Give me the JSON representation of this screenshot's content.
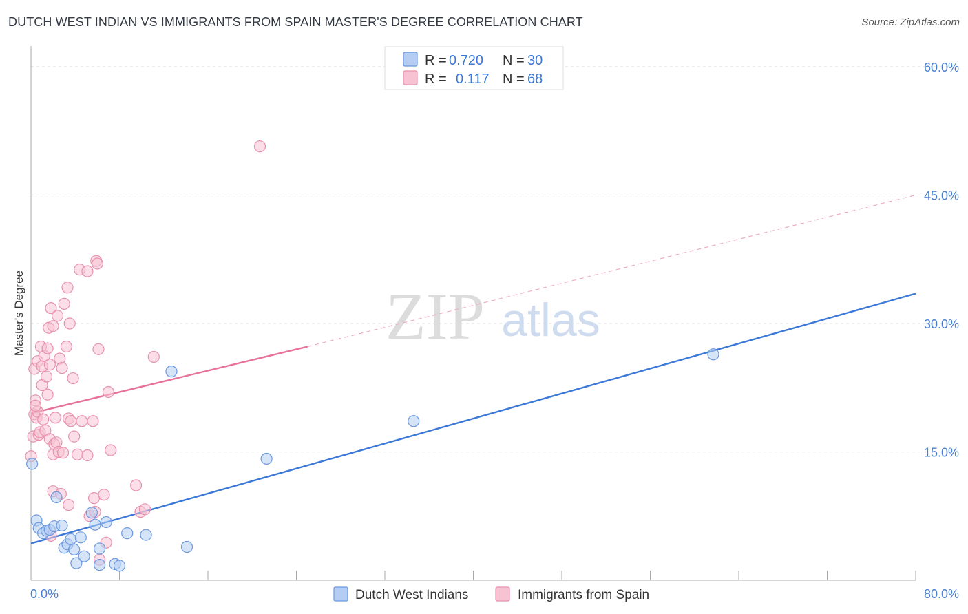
{
  "title": "DUTCH WEST INDIAN VS IMMIGRANTS FROM SPAIN MASTER'S DEGREE CORRELATION CHART",
  "source": "Source: ZipAtlas.com",
  "watermark": {
    "zip": "ZIP",
    "atlas": "atlas"
  },
  "colors": {
    "blue": "#3b78d8",
    "blue_fill": "#b5cdf3",
    "pink": "#e8719a",
    "pink_fill": "#f7c3d3",
    "tick_text": "#4a7fd0",
    "grid": "#dddddd"
  },
  "legend": {
    "r_label": "R =",
    "n_label": "N =",
    "rows": [
      {
        "series": "Dutch West Indians",
        "r": "0.720",
        "n": "30",
        "color": "#b5cdf3",
        "stroke": "#6b98e0"
      },
      {
        "series": "Immigrants from Spain",
        "r": "0.117",
        "n": "68",
        "color": "#f7c3d3",
        "stroke": "#e891ad"
      }
    ]
  },
  "bottom_legend": [
    {
      "label": "Dutch West Indians",
      "color": "#b5cdf3",
      "stroke": "#6b98e0"
    },
    {
      "label": "Immigrants from Spain",
      "color": "#f7c3d3",
      "stroke": "#e891ad"
    }
  ],
  "chart_data": {
    "type": "scatter",
    "title": "DUTCH WEST INDIAN VS IMMIGRANTS FROM SPAIN MASTER'S DEGREE CORRELATION CHART",
    "xlabel": "",
    "ylabel": "Master's Degree",
    "xlim": [
      0,
      80
    ],
    "ylim": [
      0,
      60
    ],
    "x_tick_labels": [
      {
        "value": 0,
        "label": "0.0%"
      },
      {
        "value": 80,
        "label": "80.0%"
      }
    ],
    "y_tick_labels": [
      {
        "value": 15,
        "label": "15.0%"
      },
      {
        "value": 30,
        "label": "30.0%"
      },
      {
        "value": 45,
        "label": "45.0%"
      },
      {
        "value": 60,
        "label": "60.0%"
      }
    ],
    "x_minor_ticks": [
      8,
      16,
      24,
      32,
      40,
      48,
      56,
      64,
      72,
      80
    ],
    "series": [
      {
        "name": "Dutch West Indians",
        "color": "#3b78d8",
        "points": [
          [
            0.1,
            13.6
          ],
          [
            0.5,
            7.0
          ],
          [
            0.7,
            6.1
          ],
          [
            1.1,
            5.5
          ],
          [
            1.4,
            5.8
          ],
          [
            1.7,
            5.9
          ],
          [
            2.1,
            6.3
          ],
          [
            2.3,
            9.7
          ],
          [
            2.8,
            6.4
          ],
          [
            3.0,
            3.8
          ],
          [
            3.3,
            4.2
          ],
          [
            3.6,
            4.8
          ],
          [
            3.9,
            3.6
          ],
          [
            4.1,
            2.0
          ],
          [
            4.5,
            5.0
          ],
          [
            4.8,
            2.8
          ],
          [
            5.5,
            7.9
          ],
          [
            5.8,
            6.5
          ],
          [
            6.2,
            1.8
          ],
          [
            6.2,
            3.7
          ],
          [
            6.8,
            6.8
          ],
          [
            7.6,
            1.9
          ],
          [
            8.0,
            1.7
          ],
          [
            8.7,
            5.5
          ],
          [
            10.4,
            5.3
          ],
          [
            12.7,
            24.4
          ],
          [
            14.1,
            3.9
          ],
          [
            21.3,
            14.2
          ],
          [
            34.6,
            18.6
          ],
          [
            61.7,
            26.4
          ]
        ],
        "trend": {
          "x": [
            0,
            80
          ],
          "y": [
            4.3,
            33.5
          ]
        }
      },
      {
        "name": "Immigrants from Spain",
        "color": "#e8719a",
        "points": [
          [
            0.0,
            14.5
          ],
          [
            0.2,
            16.8
          ],
          [
            0.3,
            19.4
          ],
          [
            0.3,
            24.7
          ],
          [
            0.4,
            21.0
          ],
          [
            0.5,
            19.0
          ],
          [
            0.6,
            25.6
          ],
          [
            0.6,
            19.7
          ],
          [
            0.7,
            17.0
          ],
          [
            0.8,
            17.3
          ],
          [
            0.9,
            27.3
          ],
          [
            1.0,
            22.8
          ],
          [
            1.0,
            25.0
          ],
          [
            1.1,
            18.8
          ],
          [
            1.2,
            26.2
          ],
          [
            1.3,
            17.5
          ],
          [
            1.4,
            23.8
          ],
          [
            1.5,
            27.1
          ],
          [
            1.5,
            21.7
          ],
          [
            1.6,
            29.5
          ],
          [
            1.7,
            16.5
          ],
          [
            1.7,
            25.2
          ],
          [
            1.8,
            31.8
          ],
          [
            2.0,
            29.7
          ],
          [
            2.0,
            14.7
          ],
          [
            2.0,
            10.4
          ],
          [
            2.1,
            15.9
          ],
          [
            2.2,
            19.0
          ],
          [
            2.3,
            16.1
          ],
          [
            2.4,
            30.9
          ],
          [
            2.5,
            15.0
          ],
          [
            2.6,
            25.9
          ],
          [
            2.7,
            10.1
          ],
          [
            2.8,
            24.8
          ],
          [
            2.9,
            14.9
          ],
          [
            3.0,
            32.3
          ],
          [
            3.2,
            27.3
          ],
          [
            3.3,
            34.2
          ],
          [
            3.4,
            18.9
          ],
          [
            3.4,
            8.8
          ],
          [
            3.5,
            30.0
          ],
          [
            3.6,
            18.6
          ],
          [
            3.8,
            23.6
          ],
          [
            3.9,
            16.8
          ],
          [
            4.2,
            14.7
          ],
          [
            4.4,
            36.3
          ],
          [
            4.6,
            18.6
          ],
          [
            5.1,
            36.1
          ],
          [
            5.1,
            14.6
          ],
          [
            5.3,
            7.5
          ],
          [
            5.6,
            18.6
          ],
          [
            5.7,
            9.6
          ],
          [
            5.8,
            8.0
          ],
          [
            5.9,
            37.3
          ],
          [
            6.0,
            37.0
          ],
          [
            6.1,
            27.0
          ],
          [
            6.2,
            2.4
          ],
          [
            6.6,
            10.0
          ],
          [
            6.8,
            4.4
          ],
          [
            7.0,
            22.0
          ],
          [
            7.2,
            15.2
          ],
          [
            9.5,
            11.1
          ],
          [
            9.9,
            8.0
          ],
          [
            10.3,
            8.3
          ],
          [
            11.1,
            26.1
          ],
          [
            20.7,
            50.7
          ],
          [
            0.4,
            20.4
          ],
          [
            1.8,
            5.2
          ]
        ],
        "trend": {
          "x": [
            0,
            25
          ],
          "y": [
            19.5,
            27.3
          ]
        },
        "trend_extension": {
          "x": [
            25,
            80
          ],
          "y": [
            27.3,
            45.0
          ]
        }
      }
    ]
  }
}
